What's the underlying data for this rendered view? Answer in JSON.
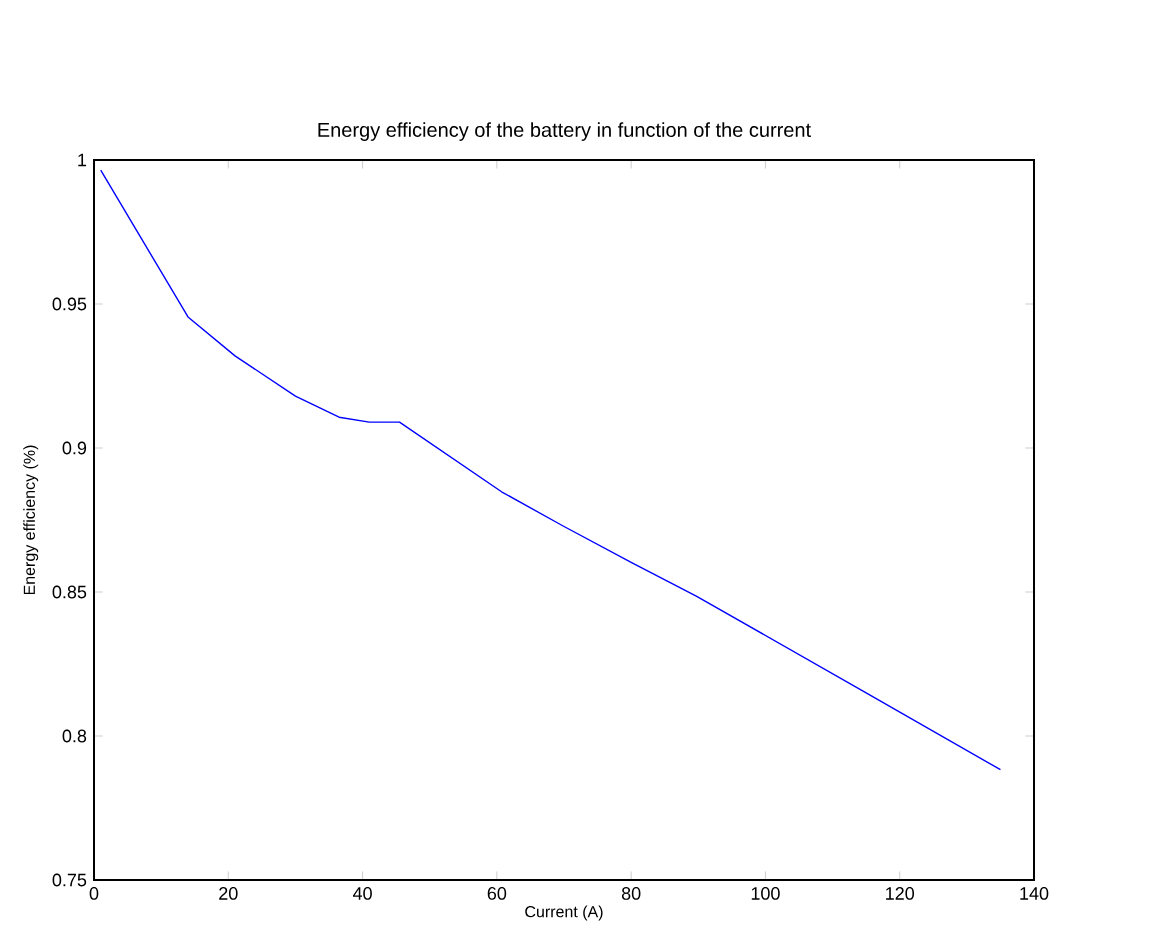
{
  "chart_data": {
    "type": "line",
    "title": "Energy efficiency of the battery in function of the current",
    "xlabel": "Current (A)",
    "ylabel": "Energy efficiency (%)",
    "x": [
      1,
      14,
      21,
      30,
      36.5,
      41,
      45.5,
      60.7,
      69.8,
      80,
      89.7,
      115,
      135
    ],
    "series": [
      {
        "color": "#0000ff",
        "values": [
          0.9965,
          0.9455,
          0.932,
          0.918,
          0.9107,
          0.909,
          0.909,
          0.8848,
          0.873,
          0.8603,
          0.8486,
          0.815,
          0.7883
        ]
      }
    ],
    "xlim": [
      0,
      140
    ],
    "ylim": [
      0.75,
      1
    ],
    "xticks": [
      0,
      20,
      40,
      60,
      80,
      100,
      120,
      140
    ],
    "yticks": [
      0.75,
      0.8,
      0.85,
      0.9,
      0.95,
      1
    ],
    "grid": false,
    "marker": "none",
    "line_style": "solid"
  }
}
